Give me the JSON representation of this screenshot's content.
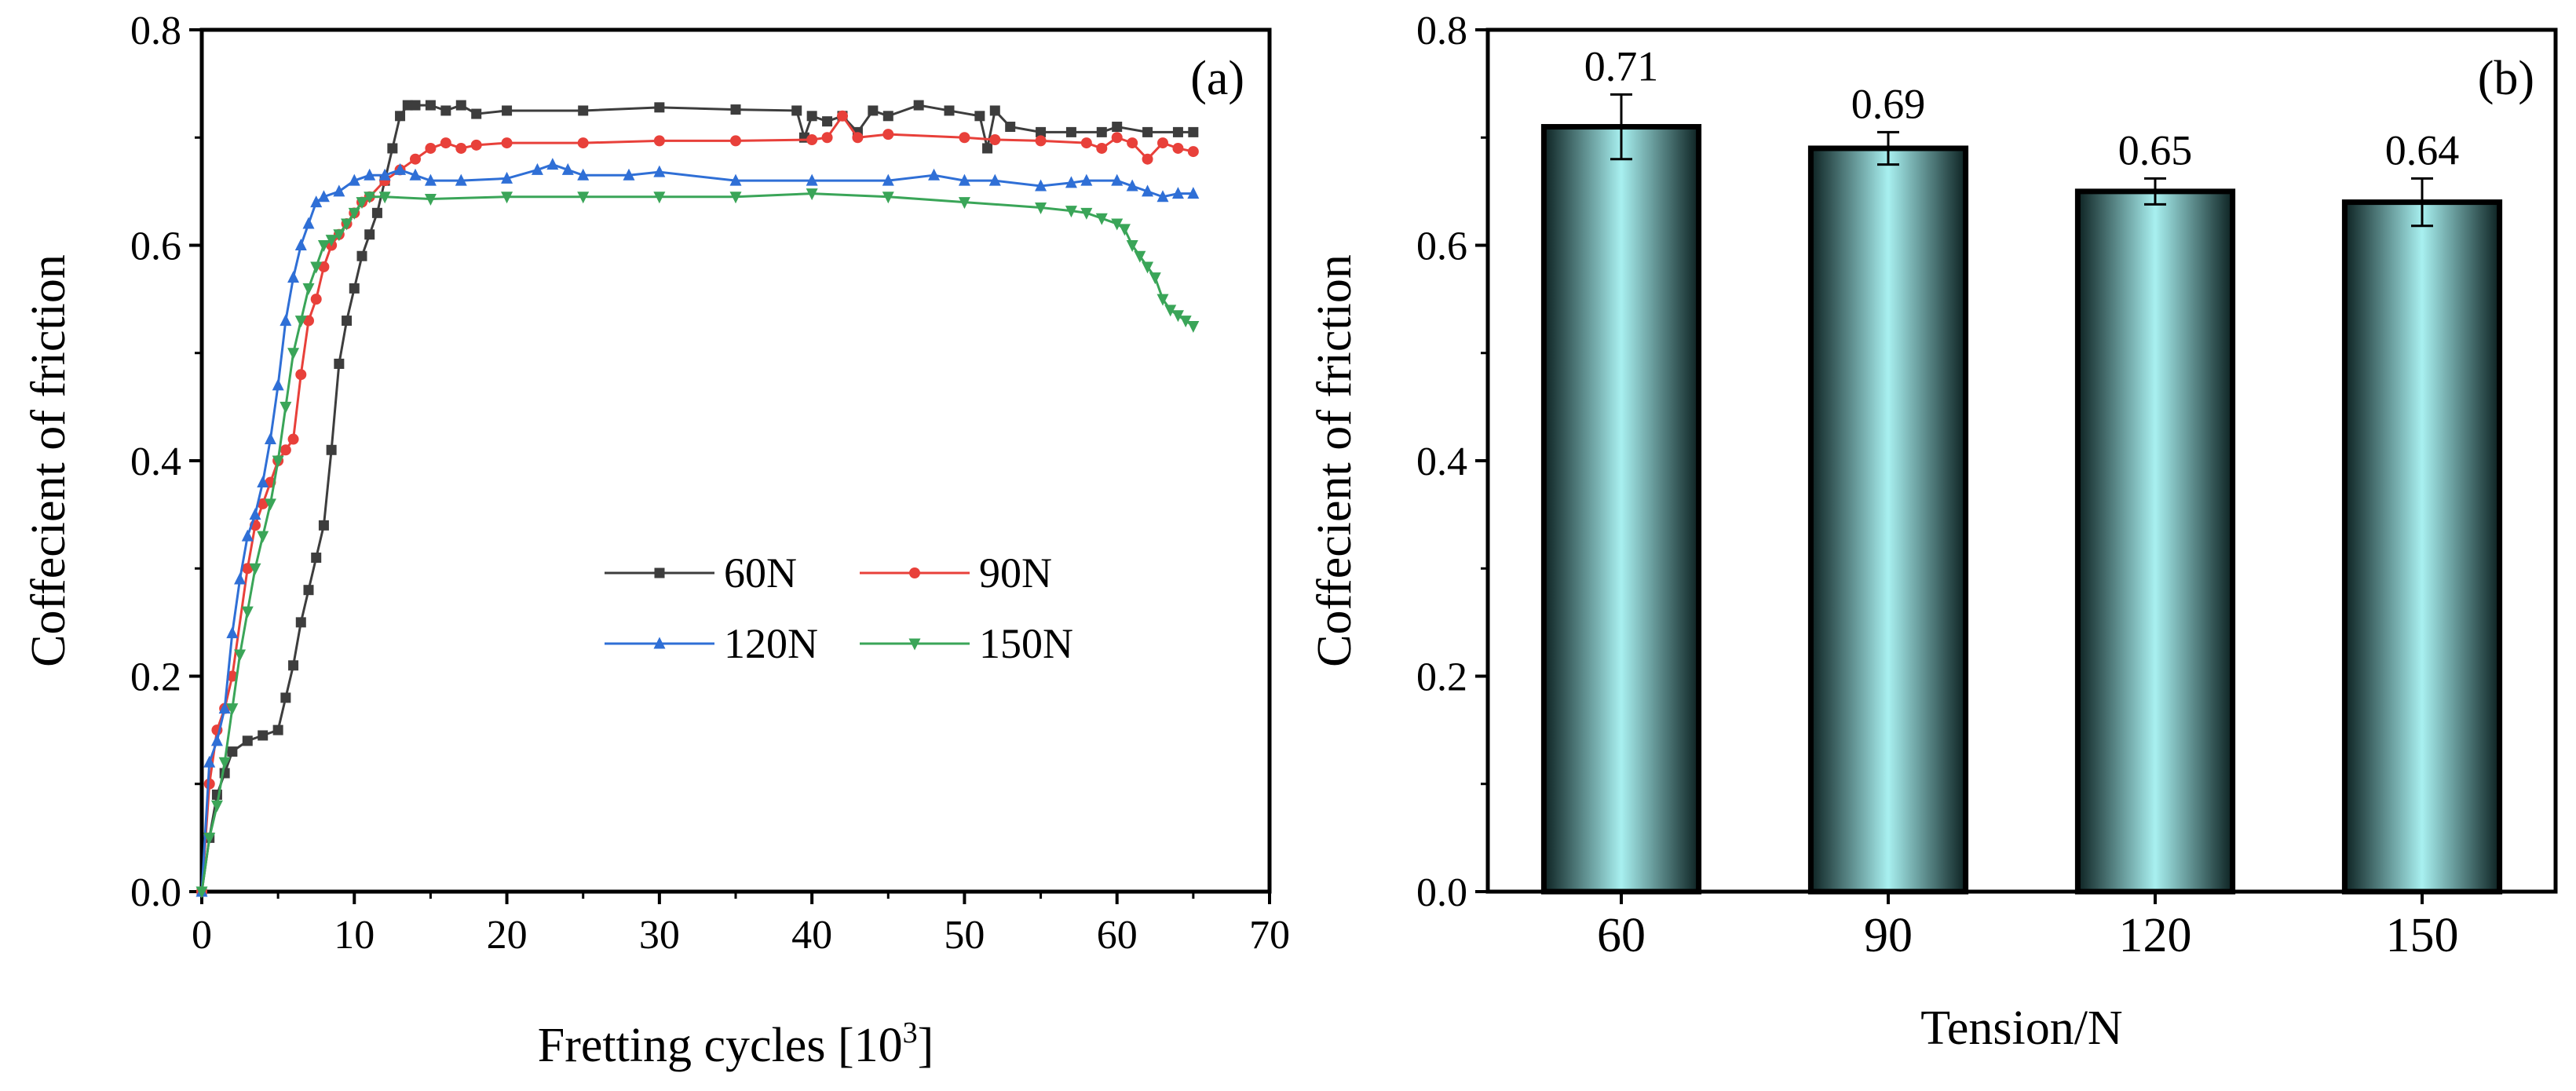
{
  "chart_data": [
    {
      "type": "line",
      "panel": "(a)",
      "xlabel": "Fretting cycles [10",
      "xlabel_exp": "3",
      "xlabel_end": "]",
      "ylabel": "Coffecient of friction",
      "xlim": [
        0,
        70
      ],
      "ylim": [
        0,
        0.8
      ],
      "xticks": [
        "0",
        "10",
        "20",
        "30",
        "40",
        "50",
        "60",
        "70"
      ],
      "yticks": [
        "0.0",
        "0.2",
        "0.4",
        "0.6",
        "0.8"
      ],
      "legend_position": "center-right",
      "series": [
        {
          "name": "60N",
          "color": "#3d3d3d",
          "marker": "square",
          "x": [
            0,
            0.5,
            1,
            1.5,
            2,
            3,
            4,
            5,
            5.5,
            6,
            6.5,
            7,
            7.5,
            8,
            8.5,
            9,
            9.5,
            10,
            10.5,
            11,
            11.5,
            12,
            12.5,
            13,
            13.5,
            14,
            15,
            16,
            17,
            18,
            20,
            25,
            30,
            35,
            39,
            39.5,
            40,
            41,
            42,
            43,
            44,
            45,
            47,
            49,
            51,
            51.5,
            52,
            53,
            55,
            57,
            59,
            60,
            62,
            64,
            65
          ],
          "y": [
            0,
            0.05,
            0.09,
            0.11,
            0.13,
            0.14,
            0.145,
            0.15,
            0.18,
            0.21,
            0.25,
            0.28,
            0.31,
            0.34,
            0.41,
            0.49,
            0.53,
            0.56,
            0.59,
            0.61,
            0.63,
            0.66,
            0.69,
            0.72,
            0.73,
            0.73,
            0.73,
            0.725,
            0.73,
            0.722,
            0.725,
            0.725,
            0.728,
            0.726,
            0.725,
            0.7,
            0.72,
            0.715,
            0.72,
            0.705,
            0.725,
            0.72,
            0.73,
            0.725,
            0.72,
            0.69,
            0.725,
            0.71,
            0.705,
            0.705,
            0.705,
            0.71,
            0.705,
            0.705,
            0.705
          ]
        },
        {
          "name": "90N",
          "color": "#e8403a",
          "marker": "circle",
          "x": [
            0,
            0.5,
            1,
            1.5,
            2,
            3,
            3.5,
            4,
            4.5,
            5,
            5.5,
            6,
            6.5,
            7,
            7.5,
            8,
            8.5,
            9,
            9.5,
            10,
            10.5,
            11,
            12,
            13,
            14,
            15,
            16,
            17,
            18,
            20,
            25,
            30,
            35,
            40,
            41,
            42,
            43,
            45,
            50,
            52,
            55,
            58,
            59,
            60,
            61,
            62,
            63,
            64,
            65
          ],
          "y": [
            0,
            0.1,
            0.15,
            0.17,
            0.2,
            0.3,
            0.34,
            0.36,
            0.38,
            0.4,
            0.41,
            0.42,
            0.48,
            0.53,
            0.55,
            0.58,
            0.6,
            0.61,
            0.62,
            0.63,
            0.64,
            0.645,
            0.66,
            0.67,
            0.68,
            0.69,
            0.695,
            0.69,
            0.693,
            0.695,
            0.695,
            0.697,
            0.697,
            0.698,
            0.7,
            0.72,
            0.7,
            0.703,
            0.7,
            0.698,
            0.697,
            0.695,
            0.69,
            0.7,
            0.695,
            0.68,
            0.695,
            0.69,
            0.687
          ]
        },
        {
          "name": "120N",
          "color": "#2f6fd6",
          "marker": "triangle-up",
          "x": [
            0,
            0.5,
            1,
            1.5,
            2,
            2.5,
            3,
            3.5,
            4,
            4.5,
            5,
            5.5,
            6,
            6.5,
            7,
            7.5,
            8,
            9,
            10,
            11,
            12,
            13,
            14,
            15,
            17,
            20,
            22,
            23,
            24,
            25,
            28,
            30,
            35,
            40,
            45,
            48,
            50,
            52,
            55,
            57,
            58,
            60,
            61,
            62,
            63,
            64,
            65
          ],
          "y": [
            0,
            0.12,
            0.14,
            0.17,
            0.24,
            0.29,
            0.33,
            0.35,
            0.38,
            0.42,
            0.47,
            0.53,
            0.57,
            0.6,
            0.62,
            0.64,
            0.645,
            0.65,
            0.66,
            0.665,
            0.665,
            0.67,
            0.665,
            0.66,
            0.66,
            0.662,
            0.67,
            0.675,
            0.67,
            0.665,
            0.665,
            0.668,
            0.66,
            0.66,
            0.66,
            0.665,
            0.66,
            0.66,
            0.655,
            0.658,
            0.66,
            0.66,
            0.655,
            0.65,
            0.645,
            0.648,
            0.648
          ]
        },
        {
          "name": "150N",
          "color": "#3aa558",
          "marker": "triangle-down",
          "x": [
            0,
            0.5,
            1,
            1.5,
            2,
            2.5,
            3,
            3.5,
            4,
            4.5,
            5,
            5.5,
            6,
            6.5,
            7,
            7.5,
            8,
            8.5,
            9,
            9.5,
            10,
            10.5,
            11,
            12,
            15,
            20,
            25,
            30,
            35,
            40,
            45,
            50,
            55,
            57,
            58,
            59,
            60,
            60.5,
            61,
            61.5,
            62,
            62.5,
            63,
            63.5,
            64,
            64.5,
            65
          ],
          "y": [
            0,
            0.05,
            0.08,
            0.12,
            0.17,
            0.22,
            0.26,
            0.3,
            0.33,
            0.36,
            0.4,
            0.45,
            0.5,
            0.53,
            0.56,
            0.58,
            0.6,
            0.605,
            0.61,
            0.62,
            0.63,
            0.64,
            0.645,
            0.645,
            0.643,
            0.645,
            0.645,
            0.645,
            0.645,
            0.648,
            0.645,
            0.64,
            0.635,
            0.632,
            0.63,
            0.625,
            0.62,
            0.615,
            0.6,
            0.59,
            0.58,
            0.57,
            0.55,
            0.54,
            0.535,
            0.53,
            0.525
          ]
        }
      ]
    },
    {
      "type": "bar",
      "panel": "(b)",
      "xlabel": "Tension/N",
      "ylabel": "Coffecient of friction",
      "categories": [
        "60",
        "90",
        "120",
        "150"
      ],
      "values": [
        0.71,
        0.69,
        0.65,
        0.64
      ],
      "value_labels": [
        "0.71",
        "0.69",
        "0.65",
        "0.64"
      ],
      "errors": [
        0.03,
        0.015,
        0.012,
        0.022
      ],
      "ylim": [
        0,
        0.8
      ],
      "yticks": [
        "0.0",
        "0.2",
        "0.4",
        "0.6",
        "0.8"
      ],
      "bar_color_center": "#a8f0f0",
      "bar_color_edge": "#0d2222"
    }
  ]
}
